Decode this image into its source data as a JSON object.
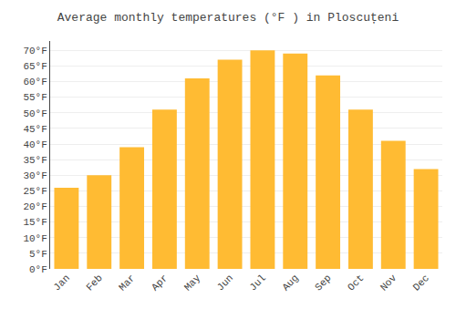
{
  "chart_data": {
    "type": "bar",
    "title": "Average monthly temperatures (°F ) in Ploscuțeni",
    "categories": [
      "Jan",
      "Feb",
      "Mar",
      "Apr",
      "May",
      "Jun",
      "Jul",
      "Aug",
      "Sep",
      "Oct",
      "Nov",
      "Dec"
    ],
    "values": [
      26,
      30,
      39,
      51,
      61,
      67,
      70,
      69,
      62,
      51,
      41,
      32
    ],
    "color": "#FFBB33",
    "ylim": [
      0,
      73
    ],
    "yticks": [
      {
        "value": 0,
        "label": "0°F"
      },
      {
        "value": 5,
        "label": "5°F"
      },
      {
        "value": 10,
        "label": "10°F"
      },
      {
        "value": 15,
        "label": "15°F"
      },
      {
        "value": 20,
        "label": "20°F"
      },
      {
        "value": 25,
        "label": "25°F"
      },
      {
        "value": 30,
        "label": "30°F"
      },
      {
        "value": 35,
        "label": "35°F"
      },
      {
        "value": 40,
        "label": "40°F"
      },
      {
        "value": 45,
        "label": "45°F"
      },
      {
        "value": 50,
        "label": "50°F"
      },
      {
        "value": 55,
        "label": "55°F"
      },
      {
        "value": 60,
        "label": "60°F"
      },
      {
        "value": 65,
        "label": "65°F"
      },
      {
        "value": 70,
        "label": "70°F"
      }
    ],
    "grid": true
  }
}
